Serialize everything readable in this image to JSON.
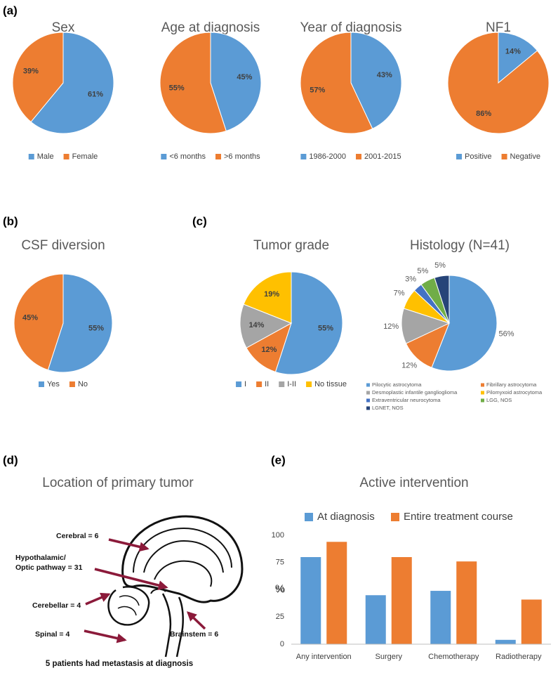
{
  "panels": [
    "(a)",
    "(b)",
    "(c)",
    "(d)",
    "(e)"
  ],
  "chart_data": [
    {
      "type": "pie",
      "title": "Sex",
      "categories": [
        "Male",
        "Female"
      ],
      "values": [
        61,
        39
      ],
      "value_labels": [
        "61%",
        "39%"
      ],
      "colors": [
        "#5b9bd5",
        "#ed7d31"
      ]
    },
    {
      "type": "pie",
      "title": "Age at diagnosis",
      "categories": [
        "<6 months",
        ">6 months"
      ],
      "values": [
        45,
        55
      ],
      "value_labels": [
        "45%",
        "55%"
      ],
      "colors": [
        "#5b9bd5",
        "#ed7d31"
      ]
    },
    {
      "type": "pie",
      "title": "Year of diagnosis",
      "categories": [
        "1986-2000",
        "2001-2015"
      ],
      "values": [
        43,
        57
      ],
      "value_labels": [
        "43%",
        "57%"
      ],
      "colors": [
        "#5b9bd5",
        "#ed7d31"
      ]
    },
    {
      "type": "pie",
      "title": "NF1",
      "categories": [
        "Positive",
        "Negative"
      ],
      "values": [
        14,
        86
      ],
      "value_labels": [
        "14%",
        "86%"
      ],
      "colors": [
        "#5b9bd5",
        "#ed7d31"
      ]
    },
    {
      "type": "pie",
      "title": "CSF diversion",
      "categories": [
        "Yes",
        "No"
      ],
      "values": [
        55,
        45
      ],
      "value_labels": [
        "55%",
        "45%"
      ],
      "colors": [
        "#5b9bd5",
        "#ed7d31"
      ]
    },
    {
      "type": "pie",
      "title": "Tumor grade",
      "categories": [
        "I",
        "II",
        "I-II",
        "No tissue"
      ],
      "values": [
        55,
        12,
        14,
        19
      ],
      "value_labels": [
        "55%",
        "12%",
        "14%",
        "19%"
      ],
      "colors": [
        "#5b9bd5",
        "#ed7d31",
        "#a5a5a5",
        "#ffc000"
      ]
    },
    {
      "type": "pie",
      "title": "Histology (N=41)",
      "categories": [
        "Pilocytic astrocytoma",
        "Fibrillary astrocytoma",
        "Desmoplastic infantile ganglioglioma",
        "Pilomyxoid astrocytoma",
        "Extraventricular neurocytoma",
        "LGG, NOS",
        "LGNET, NOS"
      ],
      "values": [
        56,
        12,
        12,
        7,
        3,
        5,
        5
      ],
      "value_labels": [
        "56%",
        "12%",
        "12%",
        "7%",
        "3%",
        "5%",
        "5%"
      ],
      "colors": [
        "#5b9bd5",
        "#ed7d31",
        "#a5a5a5",
        "#ffc000",
        "#4472c4",
        "#70ad47",
        "#264478"
      ]
    },
    {
      "type": "bar",
      "title": "Active intervention",
      "y_label": "%",
      "categories": [
        "Any intervention",
        "Surgery",
        "Chemotherapy",
        "Radiotherapy"
      ],
      "series": [
        {
          "name": "At diagnosis",
          "color": "#5b9bd5",
          "values": [
            80,
            45,
            49,
            4
          ]
        },
        {
          "name": "Entire treatment course",
          "color": "#ed7d31",
          "values": [
            94,
            80,
            76,
            41
          ]
        }
      ],
      "ylim": [
        0,
        100
      ],
      "yticks": [
        0,
        25,
        50,
        75,
        100
      ],
      "grid": false
    }
  ],
  "location": {
    "title": "Location of primary tumor",
    "labels": [
      "Cerebral = 6",
      "Hypothalamic/",
      "Optic pathway = 31",
      "Cerebellar = 4",
      "Spinal = 4",
      "Brainstem = 6"
    ],
    "note": "5 patients had metastasis at diagnosis"
  }
}
